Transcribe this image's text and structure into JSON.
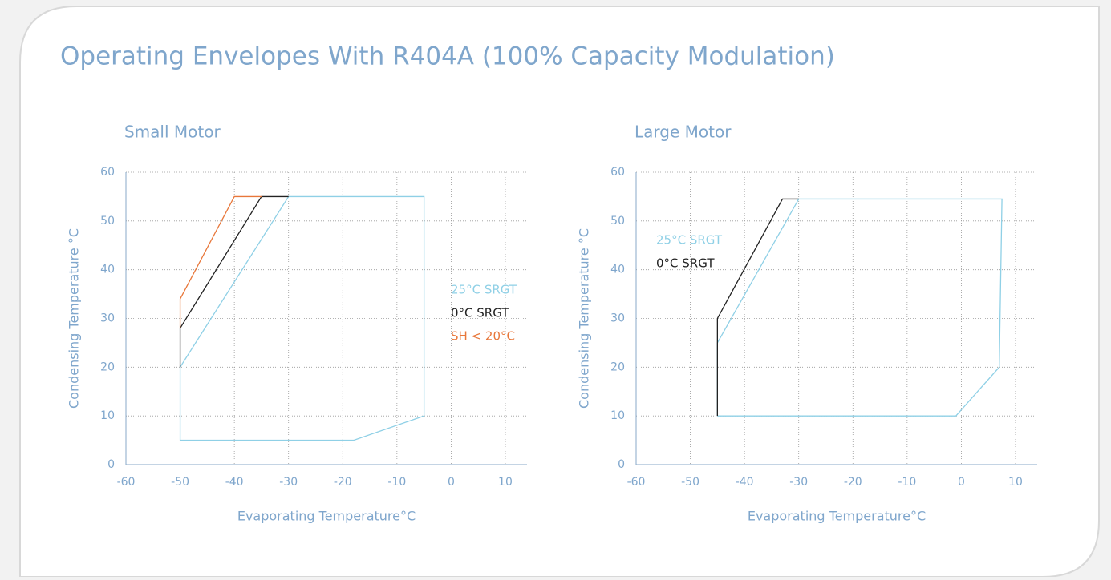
{
  "title": "Operating Envelopes With R404A (100% Capacity Modulation)",
  "chart_data": [
    {
      "type": "line",
      "title": "Small Motor",
      "xlabel": "Evaporating Temperature°C",
      "ylabel": "Condensing Temperature °C",
      "xlim": [
        -60,
        14
      ],
      "xticks": [
        -60,
        -50,
        -40,
        -30,
        -20,
        -10,
        0,
        10
      ],
      "ylim": [
        0,
        60
      ],
      "yticks": [
        0,
        10,
        20,
        30,
        40,
        50,
        60
      ],
      "grid": true,
      "legend": "center right",
      "series": [
        {
          "name": "25°C SRGT",
          "color": "#8fd0e6",
          "x": [
            -50,
            -50,
            -30,
            -5,
            -5,
            -18,
            -50
          ],
          "values": [
            5,
            20,
            55,
            55,
            10,
            5,
            5
          ]
        },
        {
          "name": "0°C SRGT",
          "color": "#222222",
          "x": [
            -50,
            -50,
            -35,
            -30
          ],
          "values": [
            20,
            28,
            55,
            55
          ]
        },
        {
          "name": "SH < 20°C",
          "color": "#e8773a",
          "x": [
            -50,
            -50,
            -40,
            -35
          ],
          "values": [
            28,
            34,
            55,
            55
          ]
        }
      ]
    },
    {
      "type": "line",
      "title": "Large  Motor",
      "xlabel": "Evaporating Temperature°C",
      "ylabel": "Condensing Temperature °C",
      "xlim": [
        -60,
        14
      ],
      "xticks": [
        -60,
        -50,
        -40,
        -30,
        -20,
        -10,
        0,
        10
      ],
      "ylim": [
        0,
        60
      ],
      "yticks": [
        0,
        10,
        20,
        30,
        40,
        50,
        60
      ],
      "grid": true,
      "legend": "upper left",
      "series": [
        {
          "name": "25°C SRGT",
          "color": "#8fd0e6",
          "x": [
            -45,
            -45,
            -30,
            7.5,
            7,
            -1,
            -45
          ],
          "values": [
            10,
            25,
            54.5,
            54.5,
            20,
            10,
            10
          ]
        },
        {
          "name": "0°C SRGT",
          "color": "#222222",
          "x": [
            -45,
            -45,
            -33,
            -30
          ],
          "values": [
            10,
            30,
            54.5,
            54.5
          ]
        }
      ]
    }
  ]
}
